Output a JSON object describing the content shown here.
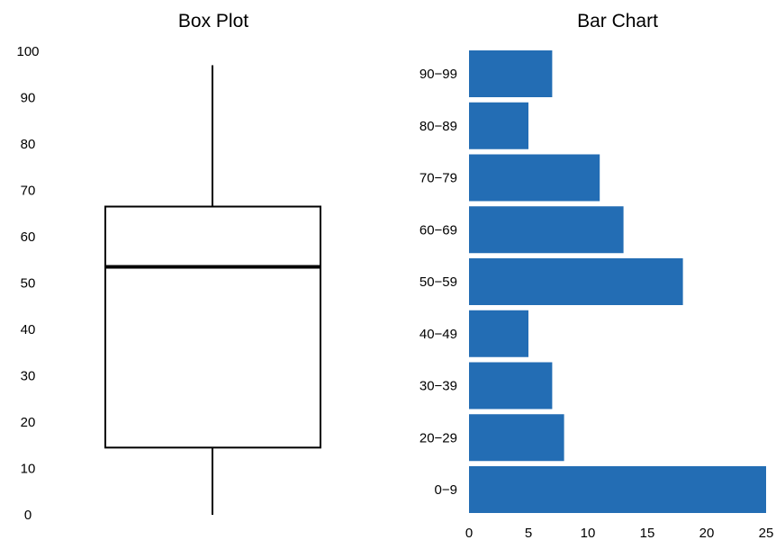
{
  "chart_data": [
    {
      "type": "box",
      "title": "Box Plot",
      "xlabel": "",
      "ylabel": "",
      "ylim": [
        0,
        100
      ],
      "yticks": [
        "0",
        "10",
        "20",
        "30",
        "40",
        "50",
        "60",
        "70",
        "80",
        "90",
        "100"
      ],
      "box": {
        "whisker_low": 0,
        "q1": 14.5,
        "median": 53.5,
        "q3": 66.5,
        "whisker_high": 97
      },
      "grid": false,
      "colors": {
        "stroke": "#000000",
        "fill": "#ffffff"
      }
    },
    {
      "type": "bar",
      "orientation": "horizontal",
      "title": "Bar Chart",
      "xlabel": "",
      "ylabel": "",
      "categories": [
        "0−9",
        "20−29",
        "30−39",
        "40−49",
        "50−59",
        "60−69",
        "70−79",
        "80−89",
        "90−99"
      ],
      "values": [
        25,
        8,
        7,
        5,
        18,
        13,
        11,
        5,
        7
      ],
      "xlim": [
        0,
        25
      ],
      "xticks": [
        "0",
        "5",
        "10",
        "15",
        "20",
        "25"
      ],
      "grid": false,
      "colors": {
        "bar": "#236db4"
      }
    }
  ]
}
